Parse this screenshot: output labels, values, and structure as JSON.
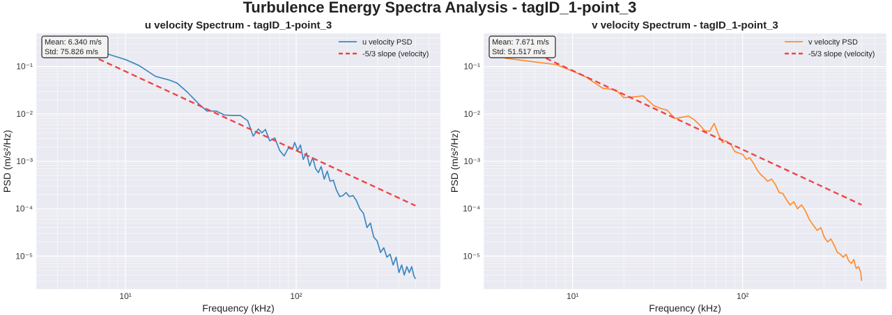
{
  "figure": {
    "title": "Turbulence Energy Spectra Analysis - tagID_1-point_3"
  },
  "chart_data": [
    {
      "type": "line",
      "title": "u velocity Spectrum - tagID_1-point_3",
      "xlabel": "Frequency (kHz)",
      "ylabel": "PSD (m/s²/Hz)",
      "xscale": "log",
      "yscale": "log",
      "xlim": [
        3,
        700
      ],
      "ylim": [
        2e-06,
        0.5
      ],
      "x_ticks": [
        10,
        100
      ],
      "x_tick_labels": [
        "10¹",
        "10²"
      ],
      "y_ticks": [
        1e-05,
        0.0001,
        0.001,
        0.01,
        0.1
      ],
      "y_tick_labels": [
        "10⁻⁵",
        "10⁻⁴",
        "10⁻³",
        "10⁻²",
        "10⁻¹"
      ],
      "grid": true,
      "legend_position": "top-right",
      "stats_box": {
        "mean": "Mean: 6.340 m/s",
        "std": "Std: 75.826 m/s"
      },
      "series": [
        {
          "name": "u velocity PSD",
          "color": "#3a87c0",
          "style": "solid",
          "x": [
            4,
            6,
            8,
            10,
            12,
            15,
            18,
            20,
            23,
            27,
            30,
            34,
            38,
            42,
            47,
            52,
            56,
            60,
            63,
            66,
            70,
            75,
            80,
            85,
            90,
            95,
            98,
            102,
            106,
            110,
            115,
            120,
            125,
            130,
            135,
            140,
            146,
            152,
            158,
            165,
            172,
            180,
            188,
            196,
            205,
            215,
            225,
            236,
            248,
            260,
            272,
            285,
            298,
            312,
            326,
            340,
            355,
            370,
            385,
            400,
            415,
            430,
            445,
            460,
            475,
            490,
            500
          ],
          "y": [
            0.36,
            0.26,
            0.18,
            0.14,
            0.105,
            0.062,
            0.052,
            0.045,
            0.029,
            0.016,
            0.0115,
            0.0115,
            0.0095,
            0.0093,
            0.0093,
            0.0072,
            0.0034,
            0.0048,
            0.004,
            0.0047,
            0.0027,
            0.0031,
            0.0017,
            0.0013,
            0.0019,
            0.0018,
            0.0025,
            0.0017,
            0.0022,
            0.0011,
            0.0015,
            0.0008,
            0.0012,
            0.0007,
            0.00058,
            0.00078,
            0.00042,
            0.00062,
            0.00038,
            0.0004,
            0.00025,
            0.00018,
            0.00019,
            0.00022,
            0.00018,
            0.00019,
            0.00015,
            0.0001,
            8e-05,
            4e-05,
            5e-05,
            2.5e-05,
            2.1e-05,
            1.2e-05,
            1.5e-05,
            9.5e-06,
            1.1e-05,
            6.5e-06,
            9.5e-06,
            4.5e-06,
            6.5e-06,
            4e-06,
            6e-06,
            4.5e-06,
            6e-06,
            3.8e-06,
            3.3e-06
          ]
        },
        {
          "name": "-5/3 slope (velocity)",
          "color": "#ef4444",
          "style": "dashed",
          "x": [
            5,
            500
          ],
          "y": [
            0.25,
            0.000116
          ]
        }
      ]
    },
    {
      "type": "line",
      "title": "v velocity Spectrum - tagID_1-point_3",
      "xlabel": "Frequency (kHz)",
      "ylabel": "PSD (m/s²/Hz)",
      "xscale": "log",
      "yscale": "log",
      "xlim": [
        3,
        700
      ],
      "ylim": [
        2e-06,
        0.5
      ],
      "x_ticks": [
        10,
        100
      ],
      "x_tick_labels": [
        "10¹",
        "10²"
      ],
      "y_ticks": [
        1e-05,
        0.0001,
        0.001,
        0.01,
        0.1
      ],
      "y_tick_labels": [
        "10⁻⁵",
        "10⁻⁴",
        "10⁻³",
        "10⁻²",
        "10⁻¹"
      ],
      "grid": true,
      "legend_position": "top-right",
      "stats_box": {
        "mean": "Mean: 7.671 m/s",
        "std": "Std: 51.517 m/s"
      },
      "series": [
        {
          "name": "v velocity PSD",
          "color": "#ff8c2a",
          "style": "solid",
          "x": [
            4,
            6,
            8,
            10,
            12,
            15,
            18,
            20,
            23,
            26,
            30,
            33,
            36,
            40,
            44,
            48,
            52,
            56,
            60,
            64,
            68,
            72,
            76,
            80,
            85,
            90,
            95,
            100,
            105,
            110,
            116,
            122,
            128,
            134,
            140,
            148,
            156,
            164,
            172,
            180,
            190,
            200,
            210,
            222,
            234,
            246,
            260,
            274,
            288,
            302,
            316,
            330,
            345,
            360,
            375,
            390,
            405,
            420,
            435,
            450,
            465,
            480,
            495,
            500
          ],
          "y": [
            0.15,
            0.125,
            0.11,
            0.08,
            0.06,
            0.035,
            0.032,
            0.022,
            0.023,
            0.024,
            0.015,
            0.013,
            0.012,
            0.008,
            0.0085,
            0.009,
            0.0075,
            0.0058,
            0.0044,
            0.0043,
            0.0063,
            0.0037,
            0.0025,
            0.0027,
            0.0023,
            0.0016,
            0.0015,
            0.0014,
            0.0011,
            0.0012,
            0.0009,
            0.00065,
            0.00052,
            0.00045,
            0.00038,
            0.00042,
            0.00032,
            0.00022,
            0.00021,
            0.00016,
            0.00012,
            0.00014,
            0.0001,
            0.00012,
            9e-05,
            6e-05,
            4.5e-05,
            3.5e-05,
            4e-05,
            2.5e-05,
            2e-05,
            2.3e-05,
            1.7e-05,
            1.2e-05,
            1.1e-05,
            9.5e-06,
            1.1e-05,
            8e-06,
            7e-06,
            8.5e-06,
            5.5e-06,
            6e-06,
            4.5e-06,
            3e-06
          ]
        },
        {
          "name": "-5/3 slope (velocity)",
          "color": "#ef4444",
          "style": "dashed",
          "x": [
            5,
            500
          ],
          "y": [
            0.26,
            0.000121
          ]
        }
      ]
    }
  ]
}
